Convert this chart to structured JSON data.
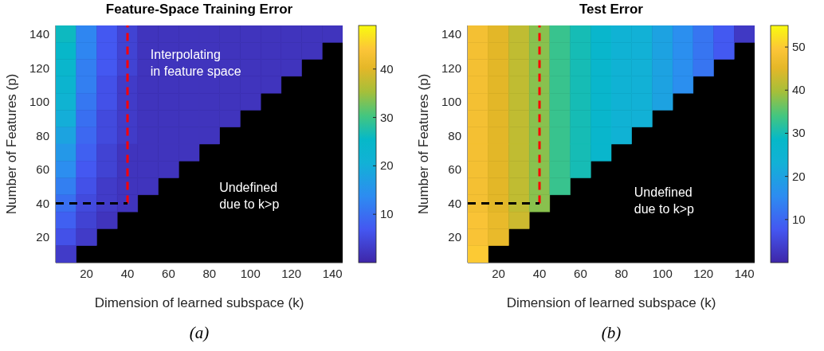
{
  "chart_data": [
    {
      "type": "heatmap",
      "title": "Feature-Space Training Error",
      "xlabel": "Dimension of learned subspace (k)",
      "ylabel": "Number of Features (p)",
      "categories": [
        null,
        "20",
        null,
        "40",
        null,
        "60",
        null,
        "80",
        null,
        "100",
        null,
        "120",
        null,
        "140"
      ],
      "y_categories": [
        "140",
        null,
        "120",
        null,
        "100",
        null,
        "80",
        null,
        "60",
        null,
        "40",
        null,
        "20",
        null
      ],
      "clim": [
        0,
        49
      ],
      "cticks": [
        10,
        20,
        30,
        40
      ],
      "cells": [
        [
          26,
          13,
          7,
          4,
          2,
          2,
          2,
          2,
          2,
          2,
          2,
          2,
          2,
          2
        ],
        [
          25,
          13,
          7,
          4,
          2,
          2,
          2,
          2,
          2,
          2,
          2,
          2,
          2,
          null
        ],
        [
          24,
          12,
          7,
          4,
          2,
          2,
          2,
          2,
          2,
          2,
          2,
          2,
          null,
          null
        ],
        [
          23,
          12,
          6,
          3,
          2,
          2,
          2,
          2,
          2,
          2,
          2,
          null,
          null,
          null
        ],
        [
          22,
          11,
          6,
          3,
          2,
          2,
          2,
          2,
          2,
          2,
          null,
          null,
          null,
          null
        ],
        [
          20,
          10,
          5,
          3,
          2,
          2,
          2,
          2,
          2,
          null,
          null,
          null,
          null,
          null
        ],
        [
          18,
          9,
          5,
          3,
          2,
          2,
          2,
          2,
          null,
          null,
          null,
          null,
          null,
          null
        ],
        [
          16,
          8,
          4,
          2,
          2,
          2,
          2,
          null,
          null,
          null,
          null,
          null,
          null,
          null
        ],
        [
          14,
          7,
          4,
          2,
          2,
          2,
          null,
          null,
          null,
          null,
          null,
          null,
          null,
          null
        ],
        [
          12,
          6,
          3,
          2,
          2,
          null,
          null,
          null,
          null,
          null,
          null,
          null,
          null,
          null
        ],
        [
          10,
          5,
          3,
          2,
          null,
          null,
          null,
          null,
          null,
          null,
          null,
          null,
          null,
          null
        ],
        [
          8,
          4,
          2,
          null,
          null,
          null,
          null,
          null,
          null,
          null,
          null,
          null,
          null,
          null
        ],
        [
          6,
          3,
          null,
          null,
          null,
          null,
          null,
          null,
          null,
          null,
          null,
          null,
          null,
          null
        ],
        [
          3,
          null,
          null,
          null,
          null,
          null,
          null,
          null,
          null,
          null,
          null,
          null,
          null,
          null
        ]
      ],
      "ref_lines": [
        {
          "axis": "x",
          "value": "40",
          "color": "#ff0000",
          "line_style": "dashed"
        },
        {
          "axis": "y",
          "value": "40",
          "color": "#000000",
          "line_style": "dashed"
        }
      ],
      "annotations": [
        "Interpolating\nin feature space",
        "Undefined\ndue to k>p",
        "(a)"
      ]
    },
    {
      "type": "heatmap",
      "title": "Test Error",
      "xlabel": "Dimension of learned subspace (k)",
      "ylabel": "Number of Features (p)",
      "categories": [
        null,
        "20",
        null,
        "40",
        null,
        "60",
        null,
        "80",
        null,
        "100",
        null,
        "120",
        null,
        "140"
      ],
      "y_categories": [
        "140",
        null,
        "120",
        null,
        "100",
        null,
        "80",
        null,
        "60",
        null,
        "40",
        null,
        "20",
        null
      ],
      "clim": [
        0,
        55
      ],
      "cticks": [
        10,
        20,
        30,
        40,
        50
      ],
      "cells": [
        [
          48,
          45,
          42,
          38,
          33,
          30,
          27,
          24,
          23,
          20,
          16,
          12,
          8,
          3
        ],
        [
          48,
          45,
          42,
          38,
          33,
          30,
          27,
          24,
          23,
          20,
          16,
          12,
          8,
          null
        ],
        [
          48,
          45,
          42,
          38,
          33,
          30,
          27,
          24,
          23,
          20,
          16,
          12,
          null,
          null
        ],
        [
          48,
          45,
          42,
          38,
          33,
          30,
          27,
          24,
          23,
          20,
          16,
          null,
          null,
          null
        ],
        [
          48,
          45,
          42,
          38,
          33,
          30,
          27,
          24,
          23,
          20,
          null,
          null,
          null,
          null
        ],
        [
          48,
          45,
          42,
          38,
          33,
          30,
          27,
          24,
          23,
          null,
          null,
          null,
          null,
          null
        ],
        [
          48,
          45,
          42,
          38,
          33,
          30,
          27,
          24,
          null,
          null,
          null,
          null,
          null,
          null
        ],
        [
          48,
          45,
          42,
          38,
          33,
          30,
          27,
          null,
          null,
          null,
          null,
          null,
          null,
          null
        ],
        [
          48,
          45,
          42,
          38,
          33,
          30,
          null,
          null,
          null,
          null,
          null,
          null,
          null,
          null
        ],
        [
          48,
          45,
          42,
          38,
          33,
          null,
          null,
          null,
          null,
          null,
          null,
          null,
          null,
          null
        ],
        [
          48,
          45,
          42,
          38,
          null,
          null,
          null,
          null,
          null,
          null,
          null,
          null,
          null,
          null
        ],
        [
          49,
          46,
          43,
          null,
          null,
          null,
          null,
          null,
          null,
          null,
          null,
          null,
          null,
          null
        ],
        [
          49,
          46,
          null,
          null,
          null,
          null,
          null,
          null,
          null,
          null,
          null,
          null,
          null,
          null
        ],
        [
          50,
          null,
          null,
          null,
          null,
          null,
          null,
          null,
          null,
          null,
          null,
          null,
          null,
          null
        ]
      ],
      "ref_lines": [
        {
          "axis": "x",
          "value": "40",
          "color": "#ff0000",
          "line_style": "dashed"
        },
        {
          "axis": "y",
          "value": "40",
          "color": "#000000",
          "line_style": "dashed"
        }
      ],
      "annotations": [
        "Undefined\ndue to k>p",
        "(b)"
      ]
    }
  ]
}
